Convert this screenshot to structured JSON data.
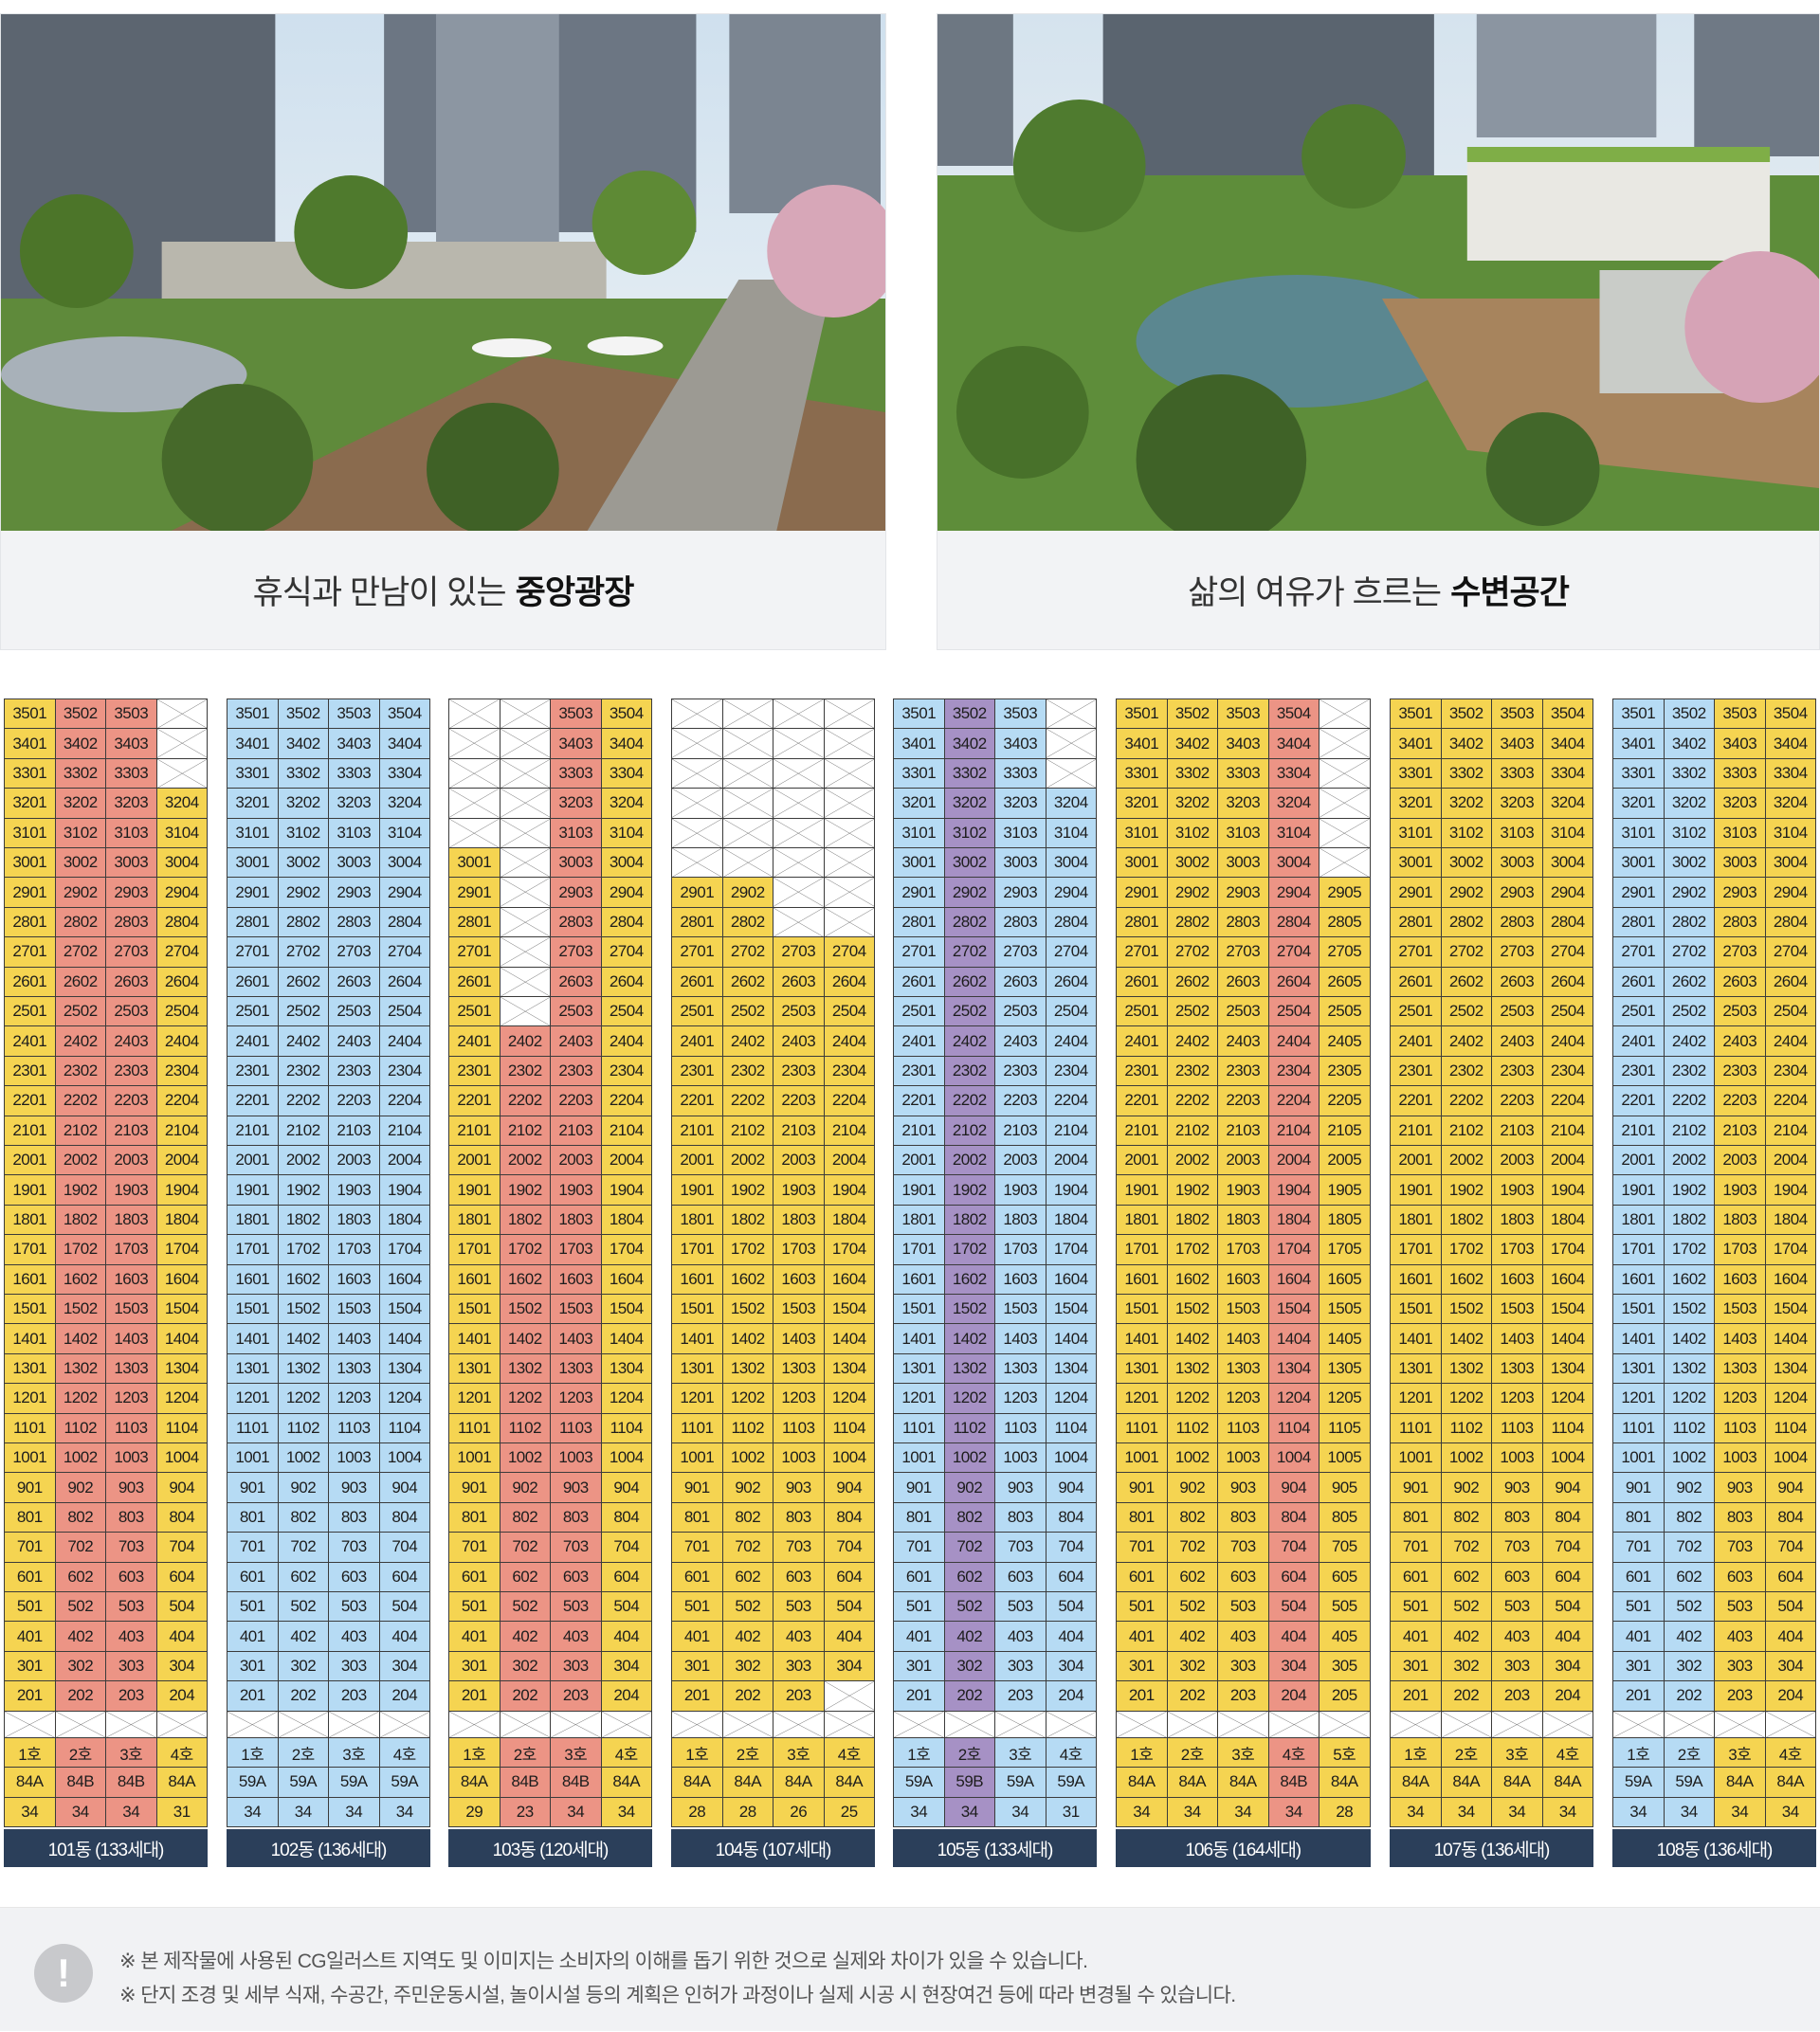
{
  "gallery": [
    {
      "caption_pre": "휴식과 만남이 있는",
      "caption_bold": "중앙광장"
    },
    {
      "caption_pre": "삶의 여유가 흐르는",
      "caption_bold": "수변공간"
    }
  ],
  "colors": {
    "Y": "#f5d451",
    "R": "#ec9485",
    "B": "#b6dbf4",
    "P": "#a691c5",
    "label_bg": "#2b3f5a"
  },
  "buildings": [
    {
      "name": "101동",
      "label": "101동 (133세대)",
      "cols": 4,
      "unit_colors": [
        "Y",
        "R",
        "R",
        "Y"
      ],
      "col_start_floor": [
        2,
        2,
        2,
        2
      ],
      "col_top_floor": [
        35,
        35,
        35,
        32
      ],
      "type_row": [
        "84A",
        "84B",
        "84B",
        "84A"
      ],
      "count_row": [
        "34",
        "34",
        "34",
        "31"
      ]
    },
    {
      "name": "102동",
      "label": "102동 (136세대)",
      "cols": 4,
      "unit_colors": [
        "B",
        "B",
        "B",
        "B"
      ],
      "col_start_floor": [
        2,
        2,
        2,
        2
      ],
      "col_top_floor": [
        35,
        35,
        35,
        35
      ],
      "type_row": [
        "59A",
        "59A",
        "59A",
        "59A"
      ],
      "count_row": [
        "34",
        "34",
        "34",
        "34"
      ]
    },
    {
      "name": "103동",
      "label": "103동 (120세대)",
      "cols": 4,
      "unit_colors": [
        "Y",
        "R",
        "R",
        "Y"
      ],
      "col_start_floor": [
        2,
        2,
        2,
        2
      ],
      "col_top_floor": [
        30,
        24,
        35,
        35
      ],
      "type_row": [
        "84A",
        "84B",
        "84B",
        "84A"
      ],
      "count_row": [
        "29",
        "23",
        "34",
        "34"
      ]
    },
    {
      "name": "104동",
      "label": "104동 (107세대)",
      "cols": 4,
      "unit_colors": [
        "Y",
        "Y",
        "Y",
        "Y"
      ],
      "col_start_floor": [
        2,
        2,
        2,
        3
      ],
      "col_top_floor": [
        29,
        29,
        27,
        27
      ],
      "type_row": [
        "84A",
        "84A",
        "84A",
        "84A"
      ],
      "count_row": [
        "28",
        "28",
        "26",
        "25"
      ]
    },
    {
      "name": "105동",
      "label": "105동 (133세대)",
      "cols": 4,
      "unit_colors": [
        "B",
        "P",
        "B",
        "B"
      ],
      "col_start_floor": [
        2,
        2,
        2,
        2
      ],
      "col_top_floor": [
        35,
        35,
        35,
        32
      ],
      "type_row": [
        "59A",
        "59B",
        "59A",
        "59A"
      ],
      "count_row": [
        "34",
        "34",
        "34",
        "31"
      ]
    },
    {
      "name": "106동",
      "label": "106동 (164세대)",
      "cols": 5,
      "unit_colors": [
        "Y",
        "Y",
        "Y",
        "R",
        "Y"
      ],
      "col_start_floor": [
        2,
        2,
        2,
        2,
        2
      ],
      "col_top_floor": [
        35,
        35,
        35,
        35,
        29
      ],
      "type_row": [
        "84A",
        "84A",
        "84A",
        "84B",
        "84A"
      ],
      "count_row": [
        "34",
        "34",
        "34",
        "34",
        "28"
      ]
    },
    {
      "name": "107동",
      "label": "107동 (136세대)",
      "cols": 4,
      "unit_colors": [
        "Y",
        "Y",
        "Y",
        "Y"
      ],
      "col_start_floor": [
        2,
        2,
        2,
        2
      ],
      "col_top_floor": [
        35,
        35,
        35,
        35
      ],
      "type_row": [
        "84A",
        "84A",
        "84A",
        "84A"
      ],
      "count_row": [
        "34",
        "34",
        "34",
        "34"
      ]
    },
    {
      "name": "108동",
      "label": "108동 (136세대)",
      "cols": 4,
      "unit_colors": [
        "B",
        "B",
        "Y",
        "Y"
      ],
      "col_start_floor": [
        2,
        2,
        2,
        2
      ],
      "col_top_floor": [
        35,
        35,
        35,
        35
      ],
      "type_row": [
        "59A",
        "59A",
        "84A",
        "84A"
      ],
      "count_row": [
        "34",
        "34",
        "34",
        "34"
      ]
    }
  ],
  "ho_labels": [
    "1호",
    "2호",
    "3호",
    "4호",
    "5호"
  ],
  "notice": {
    "line1": "※ 본 제작물에 사용된 CG일러스트 지역도 및 이미지는 소비자의 이해를 돕기 위한 것으로 실제와 차이가 있을 수 있습니다.",
    "line2": "※ 단지 조경 및 세부 식재, 수공간, 주민운동시설, 놀이시설 등의 계획은 인허가 과정이나 실제 시공 시 현장여건 등에 따라 변경될 수 있습니다."
  }
}
